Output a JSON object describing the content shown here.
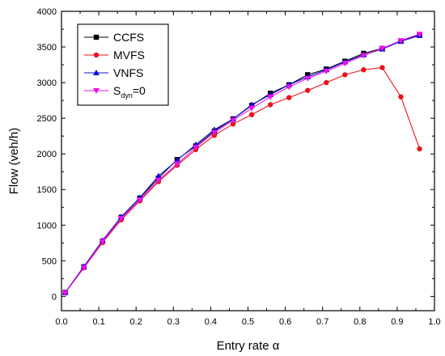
{
  "chart_data": {
    "type": "line",
    "title": "",
    "xlabel": "Entry rate α",
    "ylabel": "Flow (veh/h)",
    "xlim": [
      0.0,
      1.0
    ],
    "ylim": [
      -200,
      4000
    ],
    "xticks": [
      "0.0",
      "0.1",
      "0.2",
      "0.3",
      "0.4",
      "0.5",
      "0.6",
      "0.7",
      "0.8",
      "0.9",
      "1.0"
    ],
    "yticks": [
      "0",
      "500",
      "1000",
      "1500",
      "2000",
      "2500",
      "3000",
      "3500",
      "4000"
    ],
    "grid": false,
    "legend_position": "top-left",
    "series": [
      {
        "name": "CCFS",
        "color": "#000000",
        "marker": "square",
        "x": [
          0.01,
          0.06,
          0.11,
          0.16,
          0.21,
          0.26,
          0.31,
          0.36,
          0.41,
          0.46,
          0.51,
          0.56,
          0.61,
          0.66,
          0.71,
          0.76,
          0.81,
          0.86,
          0.91,
          0.96
        ],
        "y": [
          55,
          415,
          775,
          1110,
          1380,
          1660,
          1920,
          2110,
          2320,
          2490,
          2680,
          2850,
          2970,
          3110,
          3190,
          3300,
          3410,
          3480,
          3580,
          3670
        ]
      },
      {
        "name": "MVFS",
        "color": "#e8151b",
        "marker": "circle",
        "x": [
          0.01,
          0.06,
          0.11,
          0.16,
          0.21,
          0.26,
          0.31,
          0.36,
          0.41,
          0.46,
          0.51,
          0.56,
          0.61,
          0.66,
          0.71,
          0.76,
          0.81,
          0.86,
          0.91,
          0.96
        ],
        "y": [
          50,
          400,
          755,
          1075,
          1340,
          1610,
          1840,
          2060,
          2260,
          2420,
          2550,
          2690,
          2790,
          2890,
          3000,
          3110,
          3180,
          3210,
          2800,
          2070
        ]
      },
      {
        "name": "VNFS",
        "color": "#1010d8",
        "marker": "triangle-up",
        "x": [
          0.01,
          0.06,
          0.11,
          0.16,
          0.21,
          0.26,
          0.31,
          0.36,
          0.41,
          0.46,
          0.51,
          0.56,
          0.61,
          0.66,
          0.71,
          0.76,
          0.81,
          0.86,
          0.91,
          0.96
        ],
        "y": [
          55,
          420,
          785,
          1115,
          1385,
          1690,
          1910,
          2130,
          2340,
          2490,
          2690,
          2830,
          2970,
          3080,
          3180,
          3290,
          3390,
          3470,
          3580,
          3660
        ]
      },
      {
        "name": "S_dyn=0",
        "legend_main": "S",
        "legend_sub": "dyn",
        "legend_rest": "=0",
        "color": "#ee10ee",
        "marker": "triangle-down",
        "x": [
          0.01,
          0.06,
          0.11,
          0.16,
          0.21,
          0.26,
          0.31,
          0.36,
          0.41,
          0.46,
          0.51,
          0.56,
          0.61,
          0.66,
          0.71,
          0.76,
          0.81,
          0.86,
          0.91,
          0.96
        ],
        "y": [
          50,
          405,
          770,
          1095,
          1355,
          1630,
          1860,
          2090,
          2300,
          2470,
          2640,
          2800,
          2940,
          3060,
          3160,
          3270,
          3380,
          3480,
          3590,
          3680
        ]
      }
    ]
  }
}
